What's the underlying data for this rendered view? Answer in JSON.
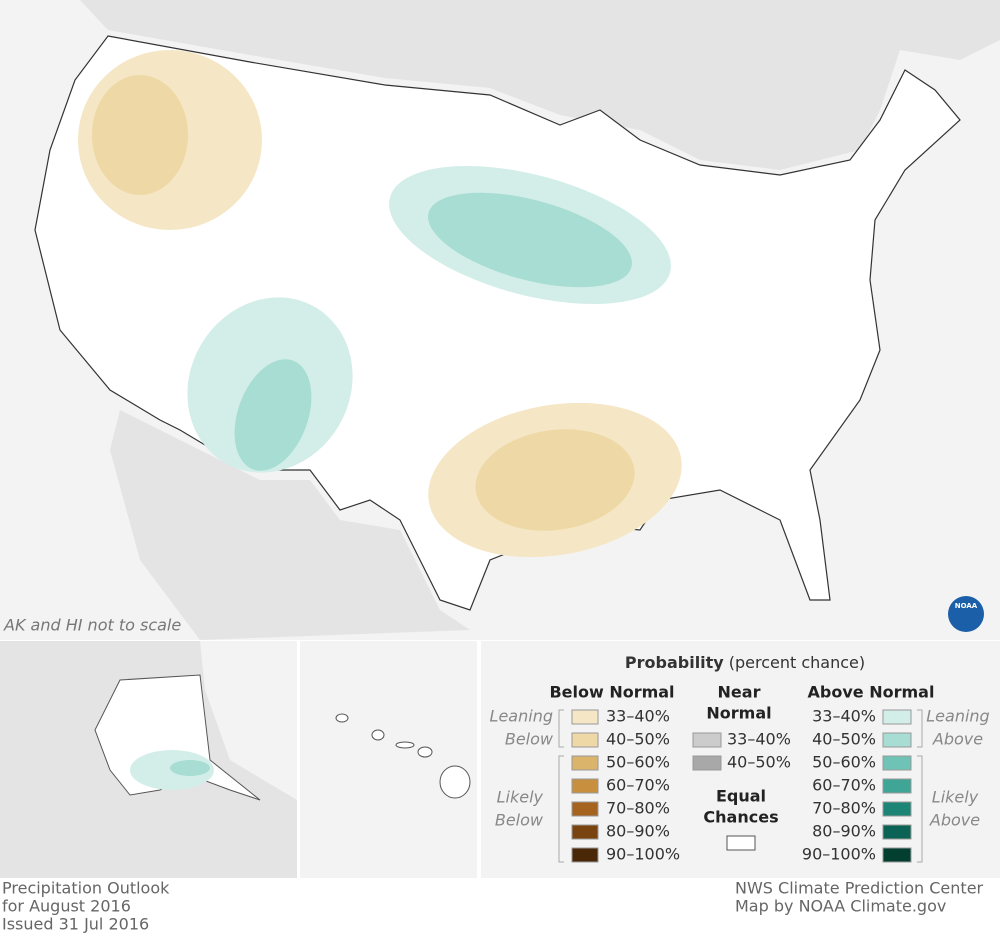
{
  "map_note": "AK and HI not to scale",
  "logo": "NOAA",
  "legend": {
    "title": "Probability",
    "subtitle": "(percent chance)",
    "below": {
      "heading": "Below Normal",
      "leaning": [
        "Leaning",
        "Below"
      ],
      "likely": [
        "Likely",
        "Below"
      ],
      "items": [
        {
          "range": "33–40%",
          "color": "#f5e7c5"
        },
        {
          "range": "40–50%",
          "color": "#eed8a6"
        },
        {
          "range": "50–60%",
          "color": "#dbb46c"
        },
        {
          "range": "60–70%",
          "color": "#c78f3e"
        },
        {
          "range": "70–80%",
          "color": "#a6631f"
        },
        {
          "range": "80–90%",
          "color": "#7a4410"
        },
        {
          "range": "90–100%",
          "color": "#4a2807"
        }
      ]
    },
    "near": {
      "heading": [
        "Near",
        "Normal"
      ],
      "items": [
        {
          "range": "33–40%",
          "color": "#cccccc"
        },
        {
          "range": "40–50%",
          "color": "#a8a8a8"
        }
      ]
    },
    "equal": {
      "heading": [
        "Equal",
        "Chances"
      ],
      "color": "#ffffff"
    },
    "above": {
      "heading": "Above Normal",
      "leaning": [
        "Leaning",
        "Above"
      ],
      "likely": [
        "Likely",
        "Above"
      ],
      "items": [
        {
          "range": "33–40%",
          "color": "#d3eee9"
        },
        {
          "range": "40–50%",
          "color": "#a7ddd3"
        },
        {
          "range": "50–60%",
          "color": "#6fc3b6"
        },
        {
          "range": "60–70%",
          "color": "#3ea597"
        },
        {
          "range": "70–80%",
          "color": "#1c8575"
        },
        {
          "range": "80–90%",
          "color": "#0a6354"
        },
        {
          "range": "90–100%",
          "color": "#033f30"
        }
      ]
    }
  },
  "footer": {
    "left": [
      "Precipitation Outlook",
      "for August 2016",
      "Issued 31 Jul 2016"
    ],
    "right": [
      "NWS Climate Prediction Center",
      "Map by NOAA Climate.gov"
    ]
  }
}
